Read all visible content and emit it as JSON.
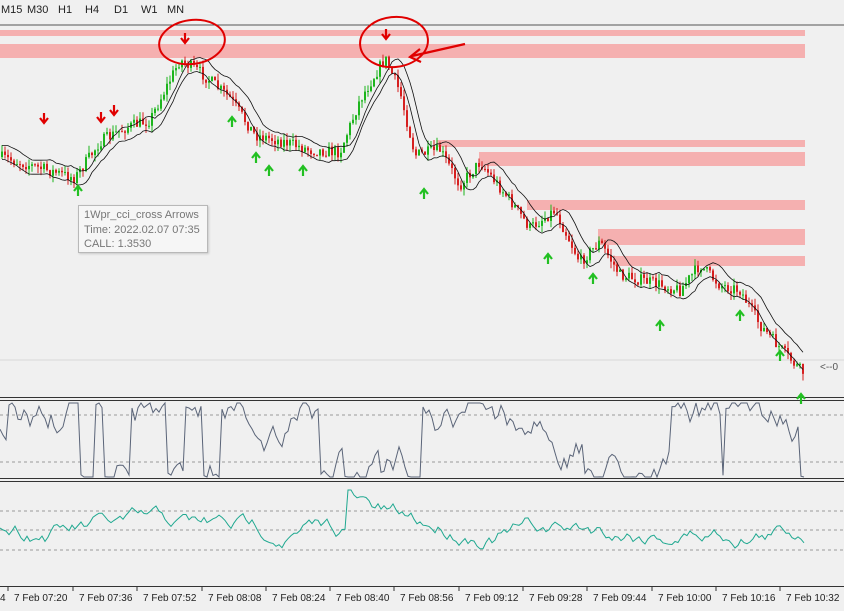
{
  "timeframes": [
    "M15",
    "M30",
    "H1",
    "H4",
    "D1",
    "W1",
    "MN"
  ],
  "time_axis": [
    "7 Feb 07:20",
    "7 Feb 07:36",
    "7 Feb 07:52",
    "7 Feb 08:08",
    "7 Feb 08:24",
    "7 Feb 08:40",
    "7 Feb 08:56",
    "7 Feb 09:12",
    "7 Feb 09:28",
    "7 Feb 09:44",
    "7 Feb 10:00",
    "7 Feb 10:16",
    "7 Feb 10:32"
  ],
  "time_axis_edge_label": "4",
  "tooltip": {
    "name": "1Wpr_cci_cross Arrows",
    "time": "Time: 2022.02.07 07:35",
    "value": "CALL: 1.3530"
  },
  "price_line_marker": "<--0",
  "colors": {
    "background": "#f0f0f0",
    "bull_candle": "#1db51d",
    "bear_candle": "#d62020",
    "zone": "#f5b0b0",
    "annotation": "#e00000",
    "wpr_line": "#5a6478",
    "cci_line": "#1fa890",
    "arrow_down": "#e00000",
    "arrow_up": "#22c022"
  },
  "icons": {
    "sell_signal": "arrow-down-icon",
    "buy_signal": "arrow-up-icon"
  }
}
